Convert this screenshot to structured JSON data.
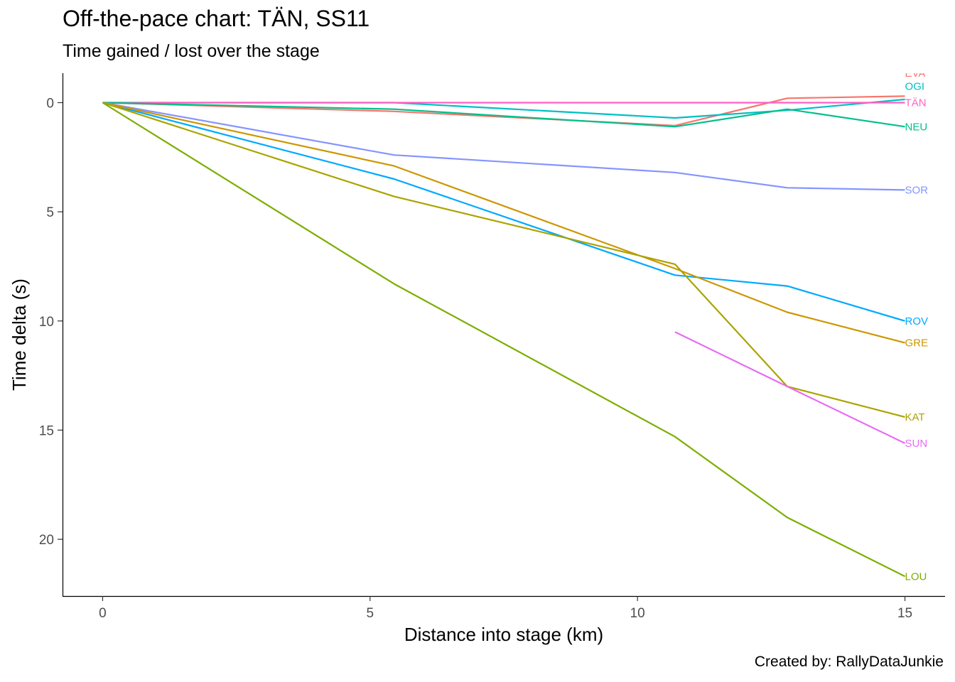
{
  "chart_data": {
    "type": "line",
    "title": "Off-the-pace chart: TÄN, SS11",
    "subtitle": "Time gained / lost over the stage",
    "xlabel": "Distance into stage (km)",
    "ylabel": "Time delta (s)",
    "caption": "Created by: RallyDataJunkie",
    "xlim": [
      -0.75,
      15.75
    ],
    "ylim": [
      -1.35,
      22.6
    ],
    "y_reversed": true,
    "xticks": [
      0,
      5,
      10,
      15
    ],
    "yticks": [
      0,
      5,
      10,
      15,
      20
    ],
    "grid": false,
    "legend": "none",
    "series": [
      {
        "name": "EVA",
        "color": "#F8766D",
        "x": [
          0,
          5.45,
          10.7,
          12.8,
          15.0
        ],
        "y": [
          0,
          0.4,
          1.05,
          -0.2,
          -0.3
        ]
      },
      {
        "name": "OGI",
        "color": "#00BFC4",
        "x": [
          0,
          5.45,
          10.7,
          12.8,
          15.0
        ],
        "y": [
          0,
          0.0,
          0.7,
          0.35,
          -0.15
        ]
      },
      {
        "name": "TÄN",
        "color": "#FF61C3",
        "x": [
          0,
          5.45,
          10.7,
          12.8,
          15.0
        ],
        "y": [
          0,
          0,
          0,
          0,
          0
        ]
      },
      {
        "name": "NEU",
        "color": "#00C08B",
        "x": [
          0,
          5.45,
          10.7,
          12.8,
          15.0
        ],
        "y": [
          0,
          0.3,
          1.1,
          0.3,
          1.1
        ]
      },
      {
        "name": "SOR",
        "color": "#8494FF",
        "x": [
          0,
          5.45,
          10.7,
          12.8,
          15.0
        ],
        "y": [
          0,
          2.4,
          3.2,
          3.9,
          4.0
        ]
      },
      {
        "name": "ROV",
        "color": "#00A9FF",
        "x": [
          0,
          5.45,
          10.7,
          12.8,
          15.0
        ],
        "y": [
          0,
          3.5,
          7.9,
          8.4,
          10.0
        ]
      },
      {
        "name": "GRE",
        "color": "#CD9600",
        "x": [
          0,
          5.45,
          10.7,
          12.8,
          15.0
        ],
        "y": [
          0,
          2.9,
          7.6,
          9.6,
          11.0
        ]
      },
      {
        "name": "KAT",
        "color": "#ABA300",
        "x": [
          0,
          5.45,
          10.7,
          12.8,
          15.0
        ],
        "y": [
          0,
          4.3,
          7.4,
          13.0,
          14.4
        ]
      },
      {
        "name": "SUN",
        "color": "#E76BF3",
        "x": [
          10.7,
          12.8,
          15.0
        ],
        "y": [
          10.5,
          13.0,
          15.6
        ]
      },
      {
        "name": "LOU",
        "color": "#7CAE00",
        "x": [
          0,
          5.45,
          10.7,
          12.8,
          15.0
        ],
        "y": [
          0,
          8.3,
          15.3,
          19.0,
          21.7
        ]
      }
    ],
    "end_labels": [
      {
        "text": "EVA",
        "color": "#F8766D",
        "y": -1.35
      },
      {
        "text": "OGI",
        "color": "#00BFC4",
        "y": -0.75
      },
      {
        "text": "TÄN",
        "color": "#FF61C3",
        "y": 0.0
      },
      {
        "text": "NEU",
        "color": "#00C08B",
        "y": 1.1
      },
      {
        "text": "SOR",
        "color": "#8494FF",
        "y": 4.0
      },
      {
        "text": "ROV",
        "color": "#00A9FF",
        "y": 10.0
      },
      {
        "text": "GRE",
        "color": "#CD9600",
        "y": 11.0
      },
      {
        "text": "KAT",
        "color": "#ABA300",
        "y": 14.4
      },
      {
        "text": "SUN",
        "color": "#E76BF3",
        "y": 15.6
      },
      {
        "text": "LOU",
        "color": "#7CAE00",
        "y": 21.7
      }
    ]
  }
}
